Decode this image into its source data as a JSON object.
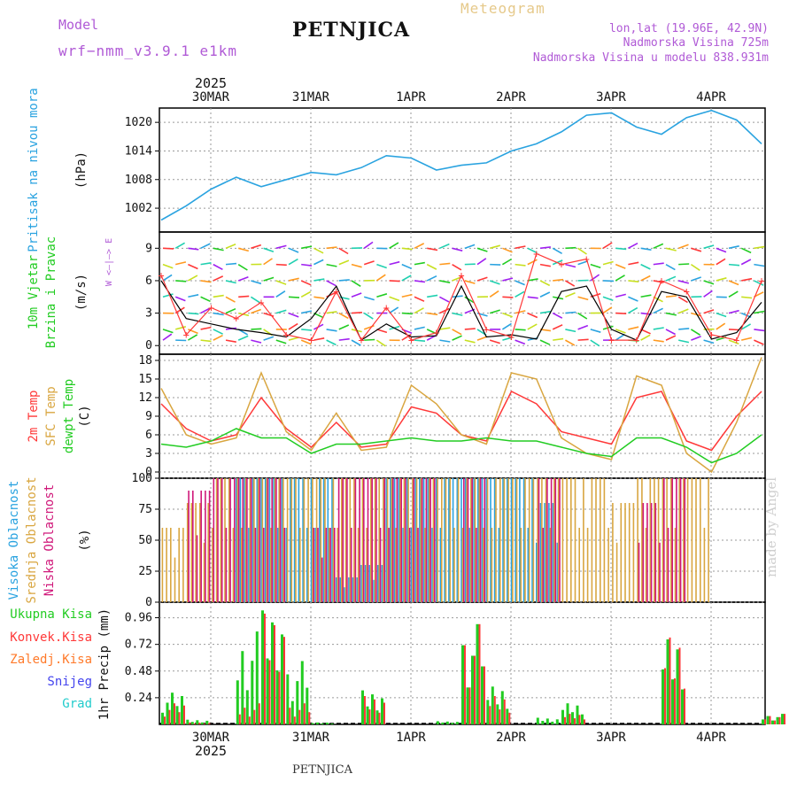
{
  "header": {
    "model_label": "Model",
    "model_name": "wrf−nmm_v3.9.1  e1km",
    "meteogram": "Meteogram",
    "station": "PETNJICA",
    "location": "lon,lat (19.96E, 42.9N)",
    "altitude": "Nadmorska Visina 725m",
    "model_altitude": "Nadmorska Visina u modelu 838.931m",
    "footer_station": "PETNJICA",
    "signature": "made by Angel"
  },
  "colors": {
    "model": "#b05ad6",
    "meteogram": "#e6c98a",
    "pressure": "#2aa3e0",
    "temp2m": "#ff3838",
    "sfc": "#d9a640",
    "dewpt": "#22cc22",
    "high_cloud": "#2aa3e0",
    "mid_cloud": "#d9a640",
    "low_cloud": "#d0187a",
    "total_precip": "#22cc22",
    "conv_precip": "#ff3838",
    "frozen_precip": "#ff7a2a",
    "snow": "#4444ee",
    "hail": "#22cccc"
  },
  "chart_data": [
    {
      "panel": "pressure",
      "type": "line",
      "ylabel": "Pritisak na nivou mora",
      "unit": "(hPa)",
      "yticks": [
        1002,
        1008,
        1014,
        1020
      ],
      "ylim": [
        997,
        1023
      ],
      "x_dates": [
        "2025-03-29T12",
        "2025-03-29T18",
        "2025-03-30T00",
        "2025-03-30T06",
        "2025-03-30T12",
        "2025-03-30T18",
        "2025-03-31T00",
        "2025-03-31T06",
        "2025-03-31T12",
        "2025-03-31T18",
        "2025-04-01T00",
        "2025-04-01T06",
        "2025-04-01T12",
        "2025-04-01T18",
        "2025-04-02T00",
        "2025-04-02T06",
        "2025-04-02T12",
        "2025-04-02T18",
        "2025-04-03T00",
        "2025-04-03T06",
        "2025-04-03T12",
        "2025-04-03T18",
        "2025-04-04T00",
        "2025-04-04T06",
        "2025-04-04T12"
      ],
      "values": [
        999.5,
        1002.5,
        1006.0,
        1008.5,
        1006.5,
        1008.0,
        1009.5,
        1009.0,
        1010.5,
        1013.0,
        1012.5,
        1010.0,
        1011.0,
        1011.5,
        1014.0,
        1015.5,
        1018.0,
        1021.5,
        1022.0,
        1019.0,
        1017.5,
        1021.0,
        1022.5,
        1020.5,
        1015.5
      ]
    },
    {
      "panel": "wind",
      "type": "line",
      "ylabel": [
        "10m Vjetar",
        "Brzina i Pravac"
      ],
      "unit": "(m/s)",
      "compass": "W <—|—> E",
      "yticks": [
        0,
        3,
        6,
        9
      ],
      "ylim": [
        -0.8,
        10.5
      ],
      "series": [
        {
          "name": "speed",
          "values": [
            6.0,
            2.5,
            2.0,
            1.5,
            1.2,
            0.8,
            2.5,
            5.5,
            0.5,
            2.0,
            0.8,
            0.9,
            5.5,
            0.8,
            1.0,
            0.6,
            5.0,
            5.5,
            1.5,
            0.5,
            5.0,
            4.5,
            0.6,
            1.2,
            4.0
          ]
        },
        {
          "name": "gust",
          "values": [
            6.5,
            1.0,
            3.5,
            2.5,
            4.0,
            1.0,
            0.5,
            5.0,
            0.5,
            3.5,
            0.5,
            1.2,
            6.5,
            1.5,
            0.8,
            8.5,
            7.5,
            8.0,
            0.5,
            0.5,
            6.0,
            5.0,
            1.0,
            0.5,
            6.0
          ]
        }
      ]
    },
    {
      "panel": "temperature",
      "type": "line",
      "ylabel": [
        "2m Temp",
        "SFC Temp",
        "dewpt Temp"
      ],
      "unit": "(C)",
      "yticks": [
        0,
        3,
        6,
        9,
        12,
        15,
        18
      ],
      "ylim": [
        -1,
        19
      ],
      "series": [
        {
          "name": "2m Temp",
          "values": [
            11.0,
            7.0,
            5.0,
            6.0,
            12.0,
            7.0,
            4.0,
            8.0,
            4.0,
            4.5,
            10.5,
            9.5,
            6.0,
            5.0,
            13.0,
            11.0,
            6.5,
            5.5,
            4.5,
            12.0,
            13.0,
            5.0,
            3.5,
            9.0,
            13.0
          ]
        },
        {
          "name": "SFC Temp",
          "values": [
            13.5,
            6.0,
            4.5,
            5.5,
            16.0,
            6.5,
            3.5,
            9.5,
            3.5,
            4.0,
            14.0,
            11.0,
            6.0,
            4.5,
            16.0,
            15.0,
            5.5,
            3.0,
            2.0,
            15.5,
            14.0,
            3.0,
            0.0,
            8.0,
            18.5
          ]
        },
        {
          "name": "dewpt Temp",
          "values": [
            4.5,
            4.0,
            5.0,
            7.0,
            5.5,
            5.5,
            3.0,
            4.5,
            4.5,
            5.0,
            5.5,
            5.0,
            5.0,
            5.5,
            5.0,
            5.0,
            4.0,
            3.0,
            2.5,
            5.5,
            5.5,
            4.0,
            1.5,
            3.0,
            6.0
          ]
        }
      ]
    },
    {
      "panel": "cloud",
      "type": "bar",
      "ylabel": [
        "Visoka Oblacnost",
        "Srednja Oblacnost",
        "Niska Oblacnost"
      ],
      "unit": "(%)",
      "yticks": [
        0,
        25,
        50,
        75,
        100
      ],
      "ylim": [
        0,
        100
      ],
      "series": [
        {
          "name": "Visoka Oblacnost",
          "values": [
            0,
            0,
            0,
            100,
            100,
            100,
            100,
            20,
            30,
            100,
            100,
            100,
            100,
            100,
            100,
            80,
            0,
            0,
            0,
            0,
            0,
            0,
            0,
            0,
            0
          ]
        },
        {
          "name": "Srednja Oblacnost",
          "values": [
            60,
            80,
            100,
            100,
            100,
            100,
            100,
            100,
            100,
            100,
            100,
            100,
            100,
            100,
            100,
            100,
            100,
            100,
            80,
            100,
            100,
            100,
            0,
            0,
            0
          ]
        },
        {
          "name": "Niska Oblacnost",
          "values": [
            0,
            90,
            100,
            100,
            100,
            0,
            60,
            100,
            100,
            100,
            100,
            0,
            100,
            0,
            0,
            100,
            0,
            0,
            0,
            80,
            100,
            0,
            0,
            0,
            80
          ]
        }
      ]
    },
    {
      "panel": "precipitation",
      "type": "bar",
      "ylabel": "1hr Precip (mm)",
      "legend": [
        "Ukupna Kisa",
        "Konvek.Kisa",
        "Zaledj.Kisa",
        "Snijeg",
        "Grad"
      ],
      "yticks": [
        0.24,
        0.48,
        0.72,
        0.96
      ],
      "ylim": [
        0,
        1.1
      ],
      "series": [
        {
          "name": "Ukupna Kisa",
          "values": [
            0.3,
            0.05,
            0.0,
            0.88,
            1.08,
            0.6,
            0.02,
            0.0,
            0.36,
            0.0,
            0.0,
            0.03,
            0.95,
            0.4,
            0.0,
            0.07,
            0.2,
            0.0,
            0.0,
            0.0,
            0.9,
            0.0,
            0.0,
            0.0,
            0.1
          ]
        },
        {
          "name": "Konvek.Kisa",
          "values": [
            0.2,
            0.02,
            0.0,
            0.2,
            1.05,
            0.2,
            0.0,
            0.0,
            0.3,
            0.0,
            0.0,
            0.0,
            0.95,
            0.3,
            0.0,
            0.0,
            0.1,
            0.0,
            0.0,
            0.0,
            0.92,
            0.0,
            0.0,
            0.0,
            0.1
          ]
        }
      ]
    }
  ],
  "axis": {
    "year": "2025",
    "top_labels": [
      "30MAR",
      "31MAR",
      "1APR",
      "2APR",
      "3APR",
      "4APR"
    ],
    "bottom_labels": [
      "30MAR",
      "31MAR",
      "1APR",
      "2APR",
      "3APR",
      "4APR"
    ],
    "bottom_year": "2025"
  }
}
